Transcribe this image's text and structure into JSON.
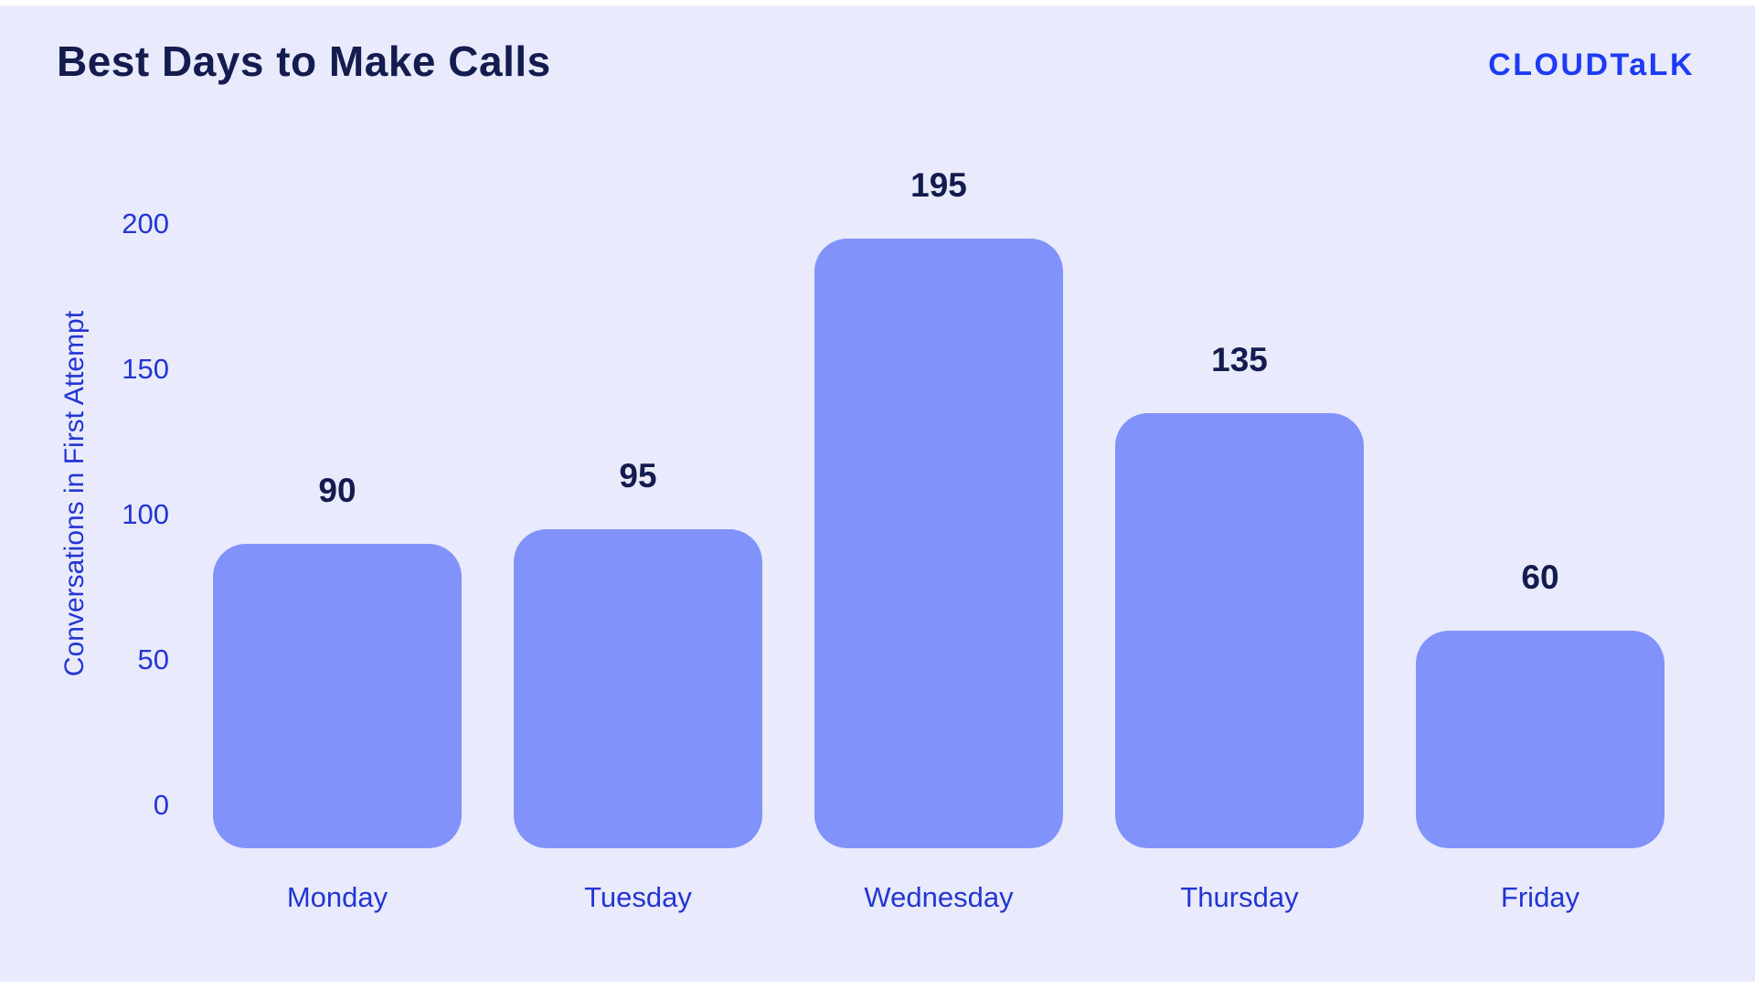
{
  "page": {
    "background_color": "#e9ebfc",
    "frame_color": "#ffffff"
  },
  "header": {
    "title": "Best Days to Make Calls",
    "title_color": "#141b4f",
    "logo_text": "CLOUDTaLK",
    "logo_color": "#1d3af5"
  },
  "chart_data": {
    "type": "bar",
    "title": "Best Days to Make Calls",
    "categories": [
      "Monday",
      "Tuesday",
      "Wednesday",
      "Thursday",
      "Friday"
    ],
    "values": [
      90,
      95,
      195,
      135,
      60
    ],
    "value_labels": [
      "90",
      "95",
      "195",
      "135",
      "60"
    ],
    "xlabel": "",
    "ylabel": "Conversations in First Attempt",
    "yticks": [
      200,
      150,
      100,
      50,
      0
    ],
    "ylim": [
      0,
      200
    ],
    "grid": false,
    "legend": false,
    "bar_color": "#8193fa",
    "value_label_color": "#141b4f",
    "axis_text_color": "#2335d3"
  }
}
